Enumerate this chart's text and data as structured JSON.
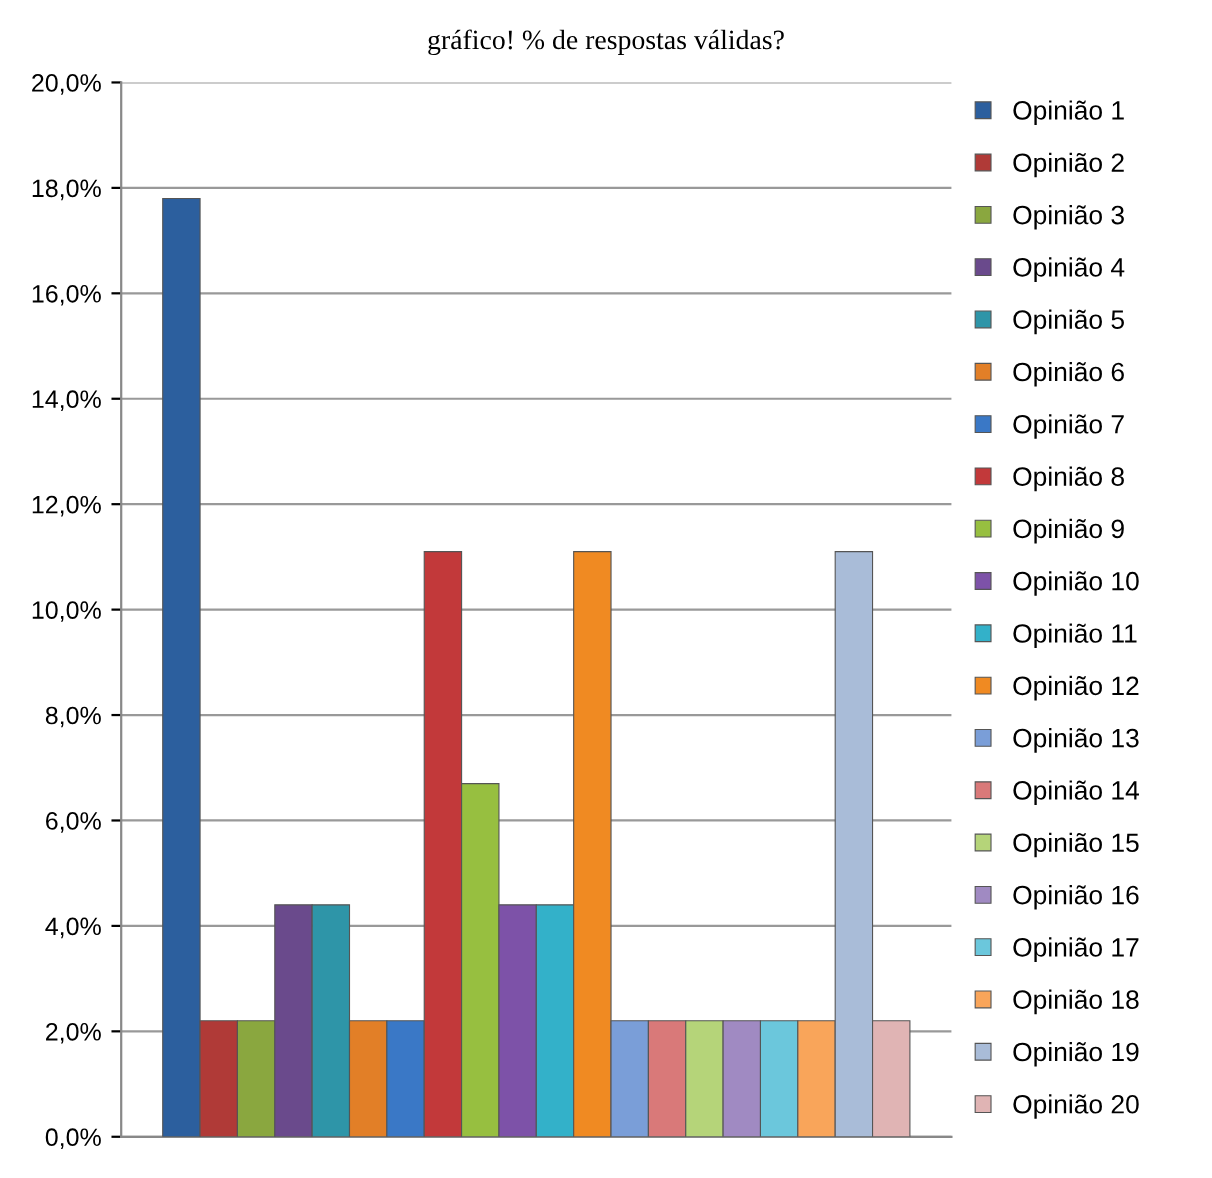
{
  "chart_data": {
    "type": "bar",
    "title": "gráfico! % de respostas válidas?",
    "categories": [
      null
    ],
    "series": [
      {
        "name": "Opinião 1",
        "color": "#2c5f9e",
        "values": [
          17.8
        ]
      },
      {
        "name": "Opinião 2",
        "color": "#b03a37",
        "values": [
          2.2
        ]
      },
      {
        "name": "Opinião 3",
        "color": "#8aa73f",
        "values": [
          2.2
        ]
      },
      {
        "name": "Opinião 4",
        "color": "#6a4a8c",
        "values": [
          4.4
        ]
      },
      {
        "name": "Opinião 5",
        "color": "#2e95a8",
        "values": [
          4.4
        ]
      },
      {
        "name": "Opinião 6",
        "color": "#e27f27",
        "values": [
          2.2
        ]
      },
      {
        "name": "Opinião 7",
        "color": "#3a78c6",
        "values": [
          2.2
        ]
      },
      {
        "name": "Opinião 8",
        "color": "#c2393a",
        "values": [
          11.1
        ]
      },
      {
        "name": "Opinião 9",
        "color": "#97bf40",
        "values": [
          6.7
        ]
      },
      {
        "name": "Opinião 10",
        "color": "#7d52a8",
        "values": [
          4.4
        ]
      },
      {
        "name": "Opinião 11",
        "color": "#33b1c9",
        "values": [
          4.4
        ]
      },
      {
        "name": "Opinião 12",
        "color": "#f08a22",
        "values": [
          11.1
        ]
      },
      {
        "name": "Opinião 13",
        "color": "#7a9ed8",
        "values": [
          2.2
        ]
      },
      {
        "name": "Opinião 14",
        "color": "#d97979",
        "values": [
          2.2
        ]
      },
      {
        "name": "Opinião 15",
        "color": "#b5d479",
        "values": [
          2.2
        ]
      },
      {
        "name": "Opinião 16",
        "color": "#a08ac2",
        "values": [
          2.2
        ]
      },
      {
        "name": "Opinião 17",
        "color": "#6bc7dc",
        "values": [
          2.2
        ]
      },
      {
        "name": "Opinião 18",
        "color": "#f9a55a",
        "values": [
          2.2
        ]
      },
      {
        "name": "Opinião 19",
        "color": "#a9bcd8",
        "values": [
          11.1
        ]
      },
      {
        "name": "Opinião 20",
        "color": "#e0b4b4",
        "values": [
          2.2
        ]
      }
    ],
    "ylim": [
      0,
      20
    ],
    "yticks": [
      {
        "value": 0,
        "label": "0,0%"
      },
      {
        "value": 2,
        "label": "2,0%"
      },
      {
        "value": 4,
        "label": "4,0%"
      },
      {
        "value": 6,
        "label": "6,0%"
      },
      {
        "value": 8,
        "label": "8,0%"
      },
      {
        "value": 10,
        "label": "10,0%"
      },
      {
        "value": 12,
        "label": "12,0%"
      },
      {
        "value": 14,
        "label": "14,0%"
      },
      {
        "value": 16,
        "label": "16,0%"
      },
      {
        "value": 18,
        "label": "18,0%"
      },
      {
        "value": 20,
        "label": "20,0%"
      }
    ],
    "grid": "y",
    "legend": "right"
  }
}
